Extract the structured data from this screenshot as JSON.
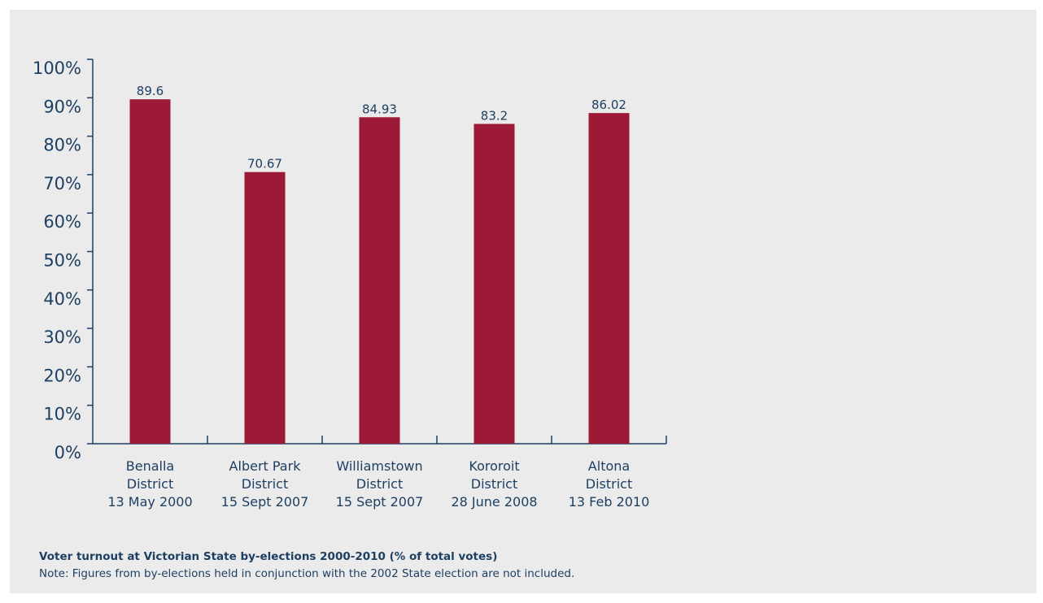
{
  "colors": {
    "background": "#ebebeb",
    "bar": "#9d1a37",
    "text": "#1d3f62",
    "axis": "#1d3f62"
  },
  "caption": {
    "title": "Voter turnout at Victorian State by-elections 2000-2010 (% of total votes)",
    "note": "Note: Figures from by-elections held in conjunction with the 2002 State election are not included."
  },
  "chart_data": {
    "type": "bar",
    "title": "",
    "xlabel": "",
    "ylabel": "",
    "ylim": [
      0,
      100
    ],
    "yticks": [
      0,
      10,
      20,
      30,
      40,
      50,
      60,
      70,
      80,
      90,
      100
    ],
    "ytick_labels": [
      "0%",
      "10%",
      "20%",
      "30%",
      "40%",
      "50%",
      "60%",
      "70%",
      "80%",
      "90%",
      "100%"
    ],
    "categories": [
      [
        "Benalla",
        "District",
        "13 May 2000"
      ],
      [
        "Albert Park",
        "District",
        "15 Sept 2007"
      ],
      [
        "Williamstown",
        "District",
        "15 Sept 2007"
      ],
      [
        "Kororoit",
        "District",
        "28 June 2008"
      ],
      [
        "Altona",
        "District",
        "13 Feb 2010"
      ]
    ],
    "values": [
      89.6,
      70.67,
      84.93,
      83.2,
      86.02
    ],
    "value_labels": [
      "89.6",
      "70.67",
      "84.93",
      "83.2",
      "86.02"
    ],
    "grid": false,
    "legend": "none"
  }
}
